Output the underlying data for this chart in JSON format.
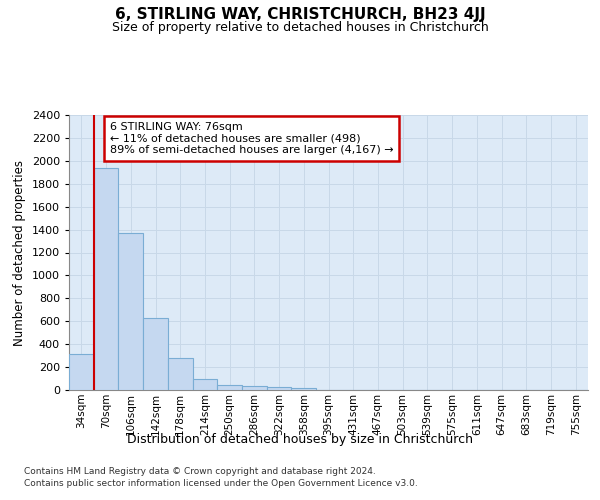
{
  "title": "6, STIRLING WAY, CHRISTCHURCH, BH23 4JJ",
  "subtitle": "Size of property relative to detached houses in Christchurch",
  "xlabel": "Distribution of detached houses by size in Christchurch",
  "ylabel": "Number of detached properties",
  "bar_labels": [
    "34sqm",
    "70sqm",
    "106sqm",
    "142sqm",
    "178sqm",
    "214sqm",
    "250sqm",
    "286sqm",
    "322sqm",
    "358sqm",
    "395sqm",
    "431sqm",
    "467sqm",
    "503sqm",
    "539sqm",
    "575sqm",
    "611sqm",
    "647sqm",
    "683sqm",
    "719sqm",
    "755sqm"
  ],
  "bar_values": [
    315,
    1940,
    1370,
    625,
    280,
    100,
    48,
    35,
    25,
    20,
    0,
    0,
    0,
    0,
    0,
    0,
    0,
    0,
    0,
    0,
    0
  ],
  "bar_color": "#c5d8f0",
  "bar_edge_color": "#7aadd4",
  "grid_color": "#c8d8e8",
  "bg_color": "#ddeaf7",
  "vline_color": "#cc0000",
  "annotation_text": "6 STIRLING WAY: 76sqm\n← 11% of detached houses are smaller (498)\n89% of semi-detached houses are larger (4,167) →",
  "annotation_box_color": "#ffffff",
  "annotation_border_color": "#cc0000",
  "ylim": [
    0,
    2400
  ],
  "yticks": [
    0,
    200,
    400,
    600,
    800,
    1000,
    1200,
    1400,
    1600,
    1800,
    2000,
    2200,
    2400
  ],
  "footnote1": "Contains HM Land Registry data © Crown copyright and database right 2024.",
  "footnote2": "Contains public sector information licensed under the Open Government Licence v3.0."
}
